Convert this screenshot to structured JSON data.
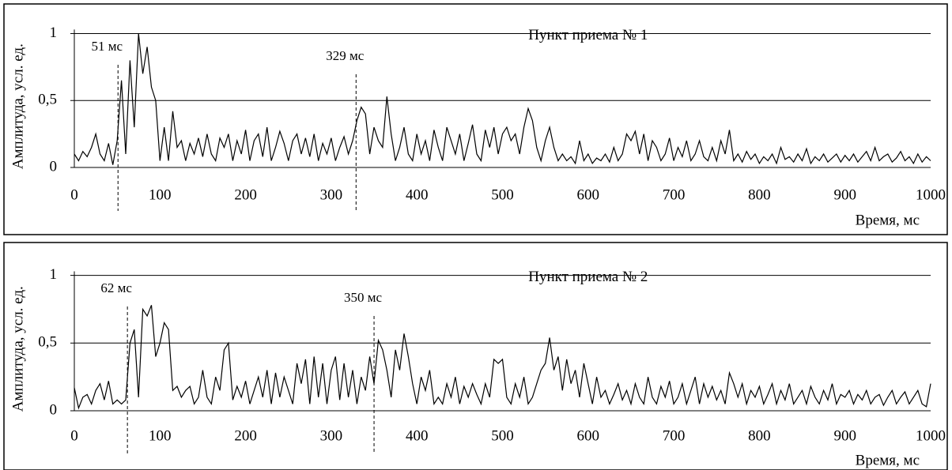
{
  "chart_data": [
    {
      "type": "line",
      "title": "Пункт приема № 1",
      "ylabel": "Амплитуда, усл. ед.",
      "xlabel": "Время, мс",
      "color": "#000000",
      "grid": true,
      "xlim": [
        0,
        1000
      ],
      "ylim": [
        0,
        1.03
      ],
      "xticks": [
        0,
        100,
        200,
        300,
        400,
        500,
        600,
        700,
        800,
        900,
        1000
      ],
      "yticks": [
        0,
        {
          "value": 0.5,
          "label": "0,5"
        },
        1
      ],
      "annotations": [
        {
          "x": 51,
          "label": "51 мс"
        },
        {
          "x": 329,
          "label": "329 мс"
        }
      ],
      "x": [
        0,
        5,
        10,
        15,
        20,
        25,
        30,
        35,
        40,
        45,
        50,
        55,
        60,
        65,
        70,
        75,
        80,
        85,
        90,
        95,
        100,
        105,
        110,
        115,
        120,
        125,
        130,
        135,
        140,
        145,
        150,
        155,
        160,
        165,
        170,
        175,
        180,
        185,
        190,
        195,
        200,
        205,
        210,
        215,
        220,
        225,
        230,
        235,
        240,
        245,
        250,
        255,
        260,
        265,
        270,
        275,
        280,
        285,
        290,
        295,
        300,
        305,
        310,
        315,
        320,
        325,
        330,
        335,
        340,
        345,
        350,
        355,
        360,
        365,
        370,
        375,
        380,
        385,
        390,
        395,
        400,
        405,
        410,
        415,
        420,
        425,
        430,
        435,
        440,
        445,
        450,
        455,
        460,
        465,
        470,
        475,
        480,
        485,
        490,
        495,
        500,
        505,
        510,
        515,
        520,
        525,
        530,
        535,
        540,
        545,
        550,
        555,
        560,
        565,
        570,
        575,
        580,
        585,
        590,
        595,
        600,
        605,
        610,
        615,
        620,
        625,
        630,
        635,
        640,
        645,
        650,
        655,
        660,
        665,
        670,
        675,
        680,
        685,
        690,
        695,
        700,
        705,
        710,
        715,
        720,
        725,
        730,
        735,
        740,
        745,
        750,
        755,
        760,
        765,
        770,
        775,
        780,
        785,
        790,
        795,
        800,
        805,
        810,
        815,
        820,
        825,
        830,
        835,
        840,
        845,
        850,
        855,
        860,
        865,
        870,
        875,
        880,
        885,
        890,
        895,
        900,
        905,
        910,
        915,
        920,
        925,
        930,
        935,
        940,
        945,
        950,
        955,
        960,
        965,
        970,
        975,
        980,
        985,
        990,
        995,
        1000
      ],
      "values": [
        0.1,
        0.05,
        0.12,
        0.08,
        0.15,
        0.25,
        0.1,
        0.05,
        0.18,
        0.02,
        0.2,
        0.65,
        0.1,
        0.8,
        0.3,
        1.0,
        0.7,
        0.9,
        0.6,
        0.5,
        0.05,
        0.3,
        0.05,
        0.42,
        0.15,
        0.2,
        0.05,
        0.18,
        0.1,
        0.22,
        0.08,
        0.25,
        0.1,
        0.05,
        0.22,
        0.15,
        0.25,
        0.05,
        0.2,
        0.1,
        0.28,
        0.05,
        0.2,
        0.25,
        0.08,
        0.3,
        0.05,
        0.15,
        0.27,
        0.18,
        0.05,
        0.2,
        0.25,
        0.1,
        0.22,
        0.08,
        0.25,
        0.05,
        0.18,
        0.1,
        0.22,
        0.05,
        0.15,
        0.23,
        0.1,
        0.2,
        0.35,
        0.45,
        0.4,
        0.1,
        0.3,
        0.2,
        0.15,
        0.53,
        0.25,
        0.05,
        0.15,
        0.3,
        0.1,
        0.05,
        0.25,
        0.1,
        0.2,
        0.05,
        0.28,
        0.15,
        0.05,
        0.3,
        0.2,
        0.1,
        0.25,
        0.05,
        0.18,
        0.32,
        0.1,
        0.05,
        0.28,
        0.15,
        0.3,
        0.1,
        0.25,
        0.3,
        0.2,
        0.25,
        0.1,
        0.3,
        0.44,
        0.35,
        0.15,
        0.05,
        0.2,
        0.3,
        0.15,
        0.05,
        0.1,
        0.05,
        0.08,
        0.03,
        0.2,
        0.05,
        0.1,
        0.03,
        0.07,
        0.05,
        0.1,
        0.04,
        0.15,
        0.05,
        0.1,
        0.25,
        0.2,
        0.27,
        0.1,
        0.25,
        0.05,
        0.2,
        0.15,
        0.05,
        0.1,
        0.22,
        0.05,
        0.15,
        0.08,
        0.2,
        0.05,
        0.1,
        0.2,
        0.08,
        0.05,
        0.15,
        0.05,
        0.2,
        0.1,
        0.28,
        0.05,
        0.1,
        0.04,
        0.12,
        0.06,
        0.1,
        0.03,
        0.08,
        0.05,
        0.1,
        0.03,
        0.15,
        0.06,
        0.08,
        0.04,
        0.1,
        0.05,
        0.14,
        0.03,
        0.08,
        0.05,
        0.1,
        0.04,
        0.07,
        0.1,
        0.04,
        0.09,
        0.05,
        0.1,
        0.04,
        0.08,
        0.12,
        0.05,
        0.15,
        0.05,
        0.08,
        0.1,
        0.04,
        0.07,
        0.12,
        0.05,
        0.08,
        0.03,
        0.1,
        0.04,
        0.08,
        0.05
      ]
    },
    {
      "type": "line",
      "title": "Пункт приема № 2",
      "ylabel": "Амплитуда, усл. ед.",
      "xlabel": "Время, мс",
      "color": "#000000",
      "grid": true,
      "xlim": [
        0,
        1000
      ],
      "ylim": [
        0,
        1.03
      ],
      "xticks": [
        0,
        100,
        200,
        300,
        400,
        500,
        600,
        700,
        800,
        900,
        1000
      ],
      "yticks": [
        0,
        {
          "value": 0.5,
          "label": "0,5"
        },
        1
      ],
      "annotations": [
        {
          "x": 62,
          "label": "62 мс"
        },
        {
          "x": 350,
          "label": "350 мс"
        }
      ],
      "x": [
        0,
        5,
        10,
        15,
        20,
        25,
        30,
        35,
        40,
        45,
        50,
        55,
        60,
        65,
        70,
        75,
        80,
        85,
        90,
        95,
        100,
        105,
        110,
        115,
        120,
        125,
        130,
        135,
        140,
        145,
        150,
        155,
        160,
        165,
        170,
        175,
        180,
        185,
        190,
        195,
        200,
        205,
        210,
        215,
        220,
        225,
        230,
        235,
        240,
        245,
        250,
        255,
        260,
        265,
        270,
        275,
        280,
        285,
        290,
        295,
        300,
        305,
        310,
        315,
        320,
        325,
        330,
        335,
        340,
        345,
        350,
        355,
        360,
        365,
        370,
        375,
        380,
        385,
        390,
        395,
        400,
        405,
        410,
        415,
        420,
        425,
        430,
        435,
        440,
        445,
        450,
        455,
        460,
        465,
        470,
        475,
        480,
        485,
        490,
        495,
        500,
        505,
        510,
        515,
        520,
        525,
        530,
        535,
        540,
        545,
        550,
        555,
        560,
        565,
        570,
        575,
        580,
        585,
        590,
        595,
        600,
        605,
        610,
        615,
        620,
        625,
        630,
        635,
        640,
        645,
        650,
        655,
        660,
        665,
        670,
        675,
        680,
        685,
        690,
        695,
        700,
        705,
        710,
        715,
        720,
        725,
        730,
        735,
        740,
        745,
        750,
        755,
        760,
        765,
        770,
        775,
        780,
        785,
        790,
        795,
        800,
        805,
        810,
        815,
        820,
        825,
        830,
        835,
        840,
        845,
        850,
        855,
        860,
        865,
        870,
        875,
        880,
        885,
        890,
        895,
        900,
        905,
        910,
        915,
        920,
        925,
        930,
        935,
        940,
        945,
        950,
        955,
        960,
        965,
        970,
        975,
        980,
        985,
        990,
        995,
        1000
      ],
      "values": [
        0.17,
        0.02,
        0.1,
        0.12,
        0.05,
        0.15,
        0.2,
        0.08,
        0.22,
        0.05,
        0.08,
        0.05,
        0.08,
        0.5,
        0.6,
        0.1,
        0.75,
        0.7,
        0.78,
        0.4,
        0.5,
        0.65,
        0.6,
        0.15,
        0.18,
        0.1,
        0.15,
        0.18,
        0.05,
        0.1,
        0.3,
        0.1,
        0.05,
        0.25,
        0.15,
        0.45,
        0.5,
        0.08,
        0.18,
        0.1,
        0.22,
        0.05,
        0.15,
        0.25,
        0.1,
        0.3,
        0.05,
        0.28,
        0.1,
        0.25,
        0.15,
        0.05,
        0.35,
        0.2,
        0.38,
        0.05,
        0.4,
        0.1,
        0.35,
        0.05,
        0.3,
        0.4,
        0.08,
        0.35,
        0.1,
        0.3,
        0.05,
        0.25,
        0.15,
        0.4,
        0.2,
        0.52,
        0.45,
        0.3,
        0.1,
        0.45,
        0.3,
        0.57,
        0.4,
        0.2,
        0.05,
        0.25,
        0.15,
        0.3,
        0.05,
        0.1,
        0.05,
        0.2,
        0.1,
        0.25,
        0.05,
        0.18,
        0.1,
        0.2,
        0.12,
        0.05,
        0.2,
        0.1,
        0.38,
        0.35,
        0.38,
        0.1,
        0.05,
        0.2,
        0.1,
        0.25,
        0.05,
        0.1,
        0.2,
        0.3,
        0.35,
        0.54,
        0.3,
        0.4,
        0.15,
        0.38,
        0.2,
        0.3,
        0.1,
        0.35,
        0.2,
        0.05,
        0.25,
        0.1,
        0.15,
        0.05,
        0.12,
        0.2,
        0.08,
        0.15,
        0.05,
        0.2,
        0.1,
        0.05,
        0.25,
        0.1,
        0.05,
        0.18,
        0.1,
        0.22,
        0.05,
        0.1,
        0.2,
        0.05,
        0.15,
        0.25,
        0.05,
        0.2,
        0.1,
        0.18,
        0.08,
        0.15,
        0.05,
        0.28,
        0.2,
        0.1,
        0.2,
        0.05,
        0.15,
        0.1,
        0.18,
        0.05,
        0.12,
        0.2,
        0.05,
        0.15,
        0.08,
        0.2,
        0.05,
        0.1,
        0.15,
        0.05,
        0.18,
        0.1,
        0.05,
        0.15,
        0.08,
        0.2,
        0.05,
        0.12,
        0.1,
        0.15,
        0.05,
        0.12,
        0.08,
        0.15,
        0.05,
        0.1,
        0.12,
        0.04,
        0.1,
        0.15,
        0.05,
        0.1,
        0.14,
        0.05,
        0.1,
        0.15,
        0.05,
        0.03,
        0.2
      ]
    }
  ]
}
